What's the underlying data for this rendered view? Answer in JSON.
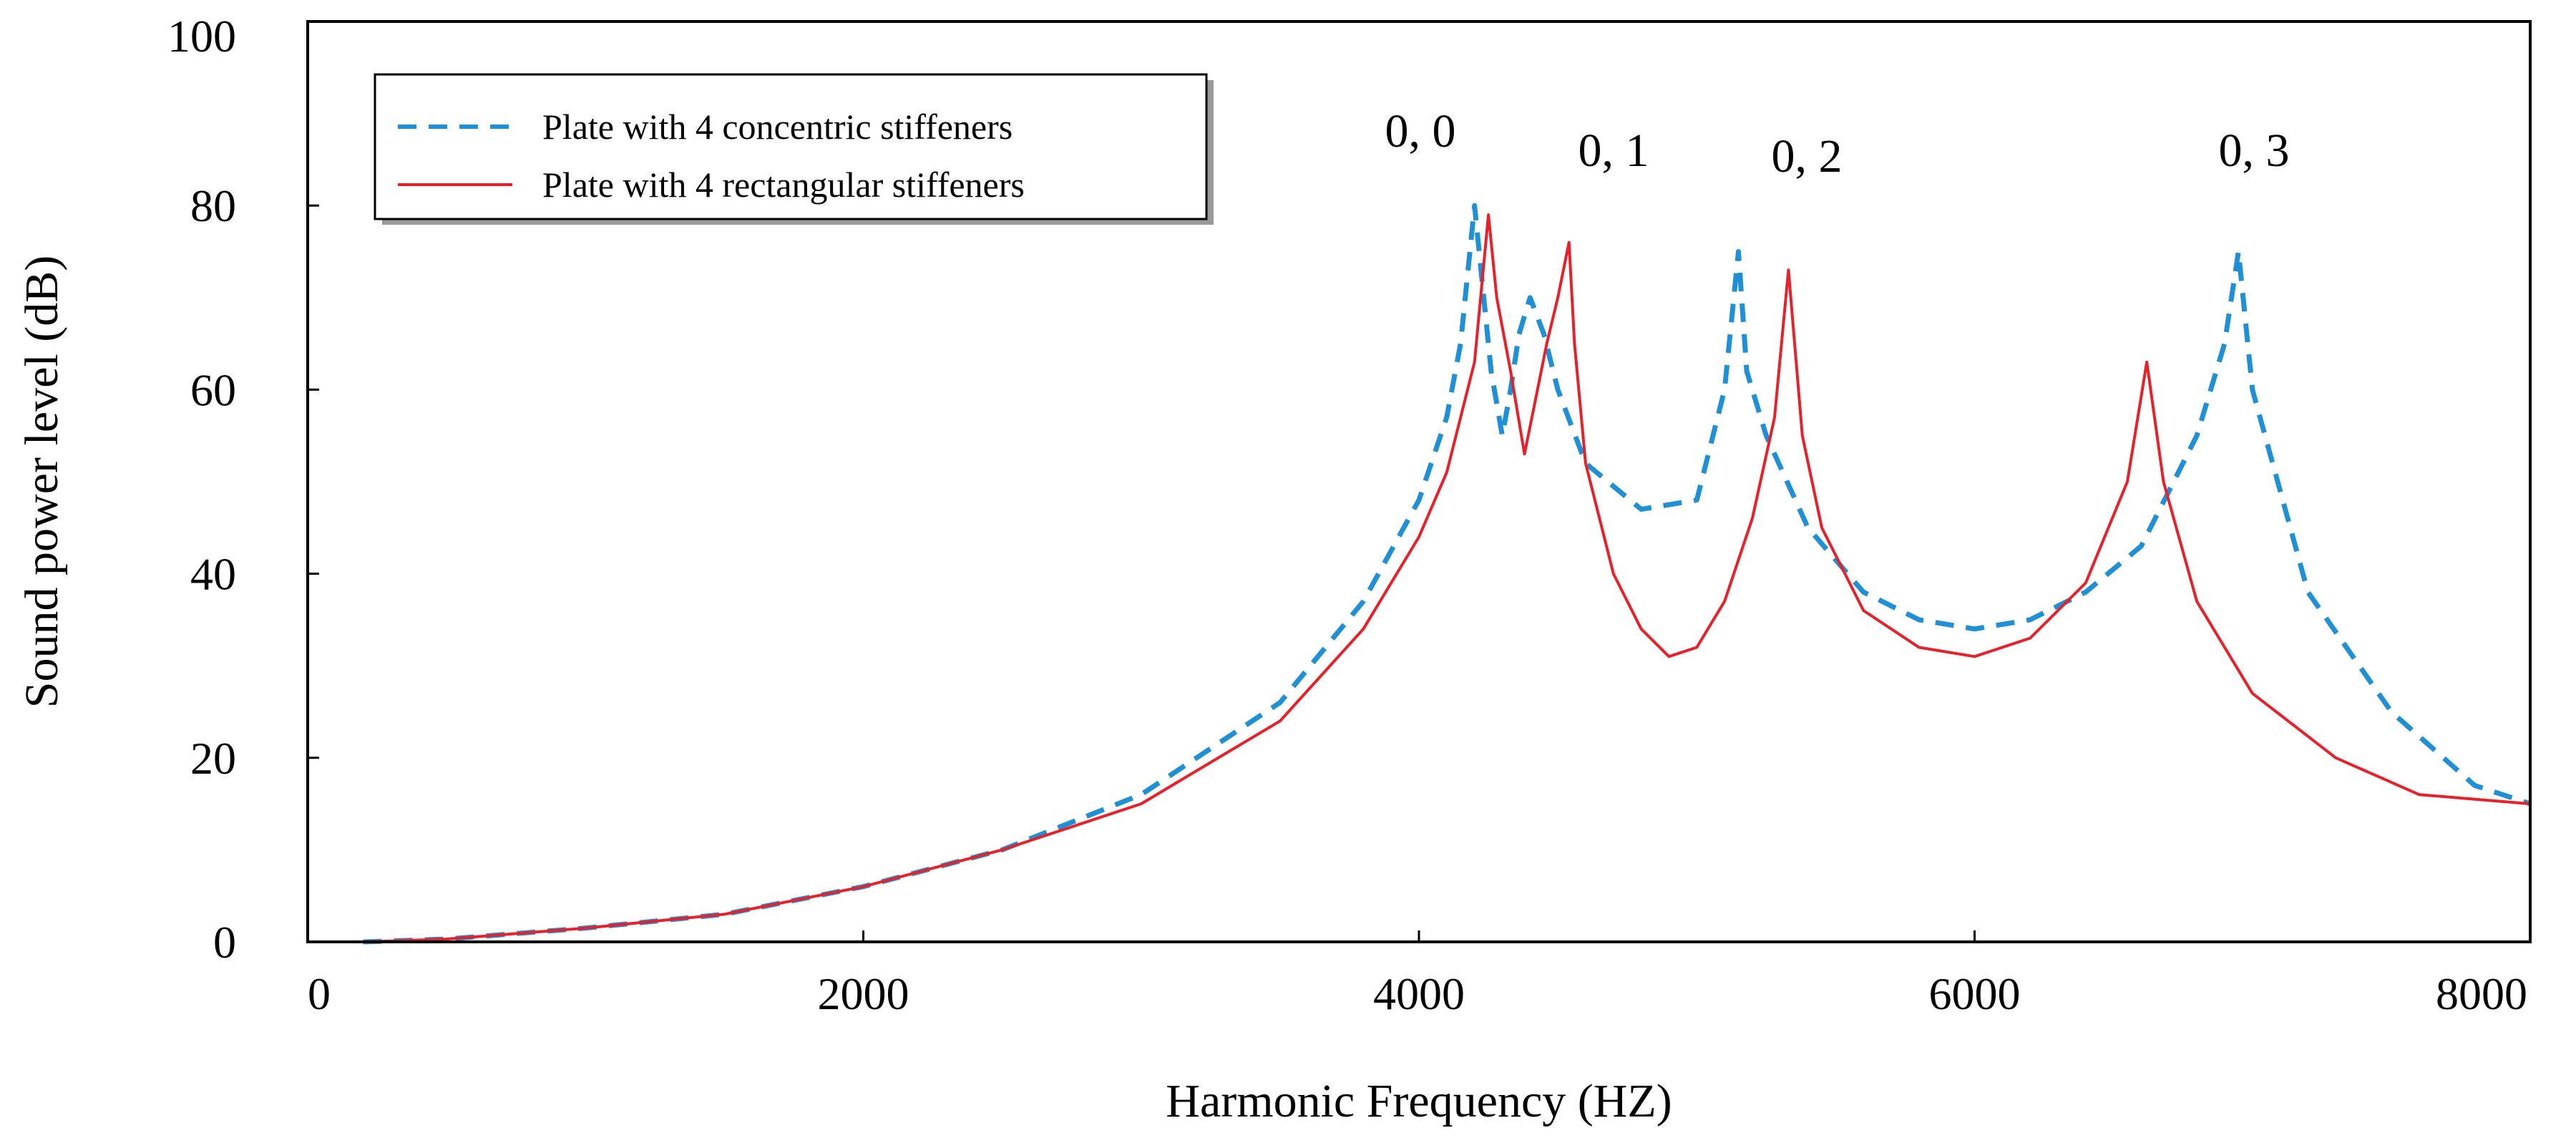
{
  "chart_data": {
    "type": "line",
    "title": "",
    "xlabel": "Harmonic Frequency (HZ)",
    "ylabel": "Sound power level (dB)",
    "xlim": [
      0,
      8000
    ],
    "ylim": [
      0,
      100
    ],
    "x_ticks": [
      "0",
      "2000",
      "4000",
      "6000",
      "8000"
    ],
    "y_ticks": [
      "0",
      "20",
      "40",
      "60",
      "80",
      "100"
    ],
    "grid": false,
    "legend_position": "top-left",
    "series": [
      {
        "name": "Plate with 4 concentric stiffeners",
        "color": "#1f8fd6",
        "style": "dashed",
        "x": [
          200,
          500,
          1000,
          1500,
          2000,
          2500,
          3000,
          3500,
          3800,
          4000,
          4100,
          4150,
          4200,
          4230,
          4260,
          4300,
          4330,
          4360,
          4400,
          4450,
          4500,
          4600,
          4800,
          5000,
          5100,
          5150,
          5180,
          5250,
          5400,
          5600,
          5800,
          6000,
          6200,
          6400,
          6600,
          6800,
          6900,
          6950,
          7000,
          7200,
          7500,
          7800,
          8000
        ],
        "values": [
          0,
          0.3,
          1.5,
          3,
          6,
          10,
          16,
          26,
          37,
          48,
          57,
          65,
          80,
          71,
          62,
          55,
          60,
          66,
          70,
          66,
          60,
          52,
          47,
          48,
          60,
          75,
          62,
          55,
          45,
          38,
          35,
          34,
          35,
          38,
          43,
          55,
          65,
          75,
          60,
          38,
          25,
          17,
          15
        ]
      },
      {
        "name": "Plate with 4 rectangular stiffeners",
        "color": "#e8202a",
        "style": "solid",
        "x": [
          200,
          500,
          1000,
          1500,
          2000,
          2500,
          3000,
          3500,
          3800,
          4000,
          4100,
          4200,
          4250,
          4280,
          4330,
          4380,
          4420,
          4460,
          4500,
          4540,
          4560,
          4600,
          4700,
          4800,
          4900,
          5000,
          5100,
          5200,
          5280,
          5330,
          5380,
          5450,
          5600,
          5800,
          6000,
          6200,
          6400,
          6550,
          6620,
          6680,
          6800,
          7000,
          7300,
          7600,
          8000
        ],
        "values": [
          0,
          0.3,
          1.5,
          3,
          6,
          10,
          15,
          24,
          34,
          44,
          51,
          63,
          79,
          70,
          62,
          53,
          59,
          65,
          70,
          76,
          65,
          52,
          40,
          34,
          31,
          32,
          37,
          46,
          57,
          73,
          55,
          45,
          36,
          32,
          31,
          33,
          39,
          50,
          63,
          50,
          37,
          27,
          20,
          16,
          15
        ]
      }
    ],
    "annotations": [
      "0, 0",
      "0, 1",
      "0, 2",
      "0, 3"
    ]
  }
}
